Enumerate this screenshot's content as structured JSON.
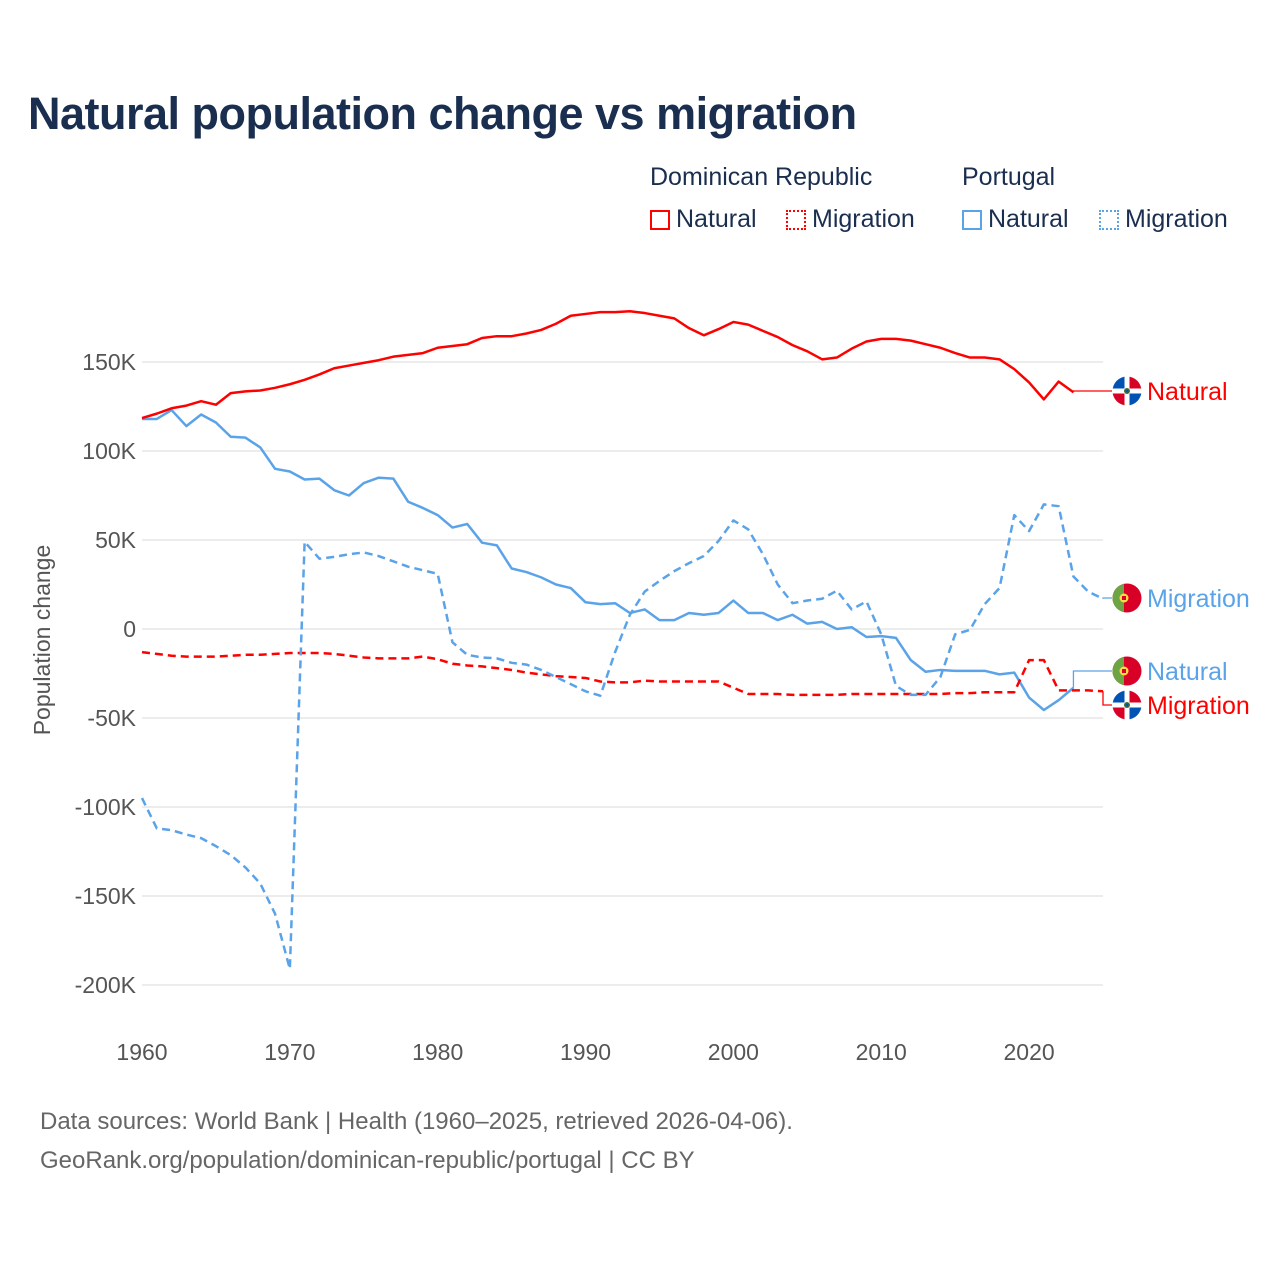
{
  "chart_data": {
    "type": "line",
    "title": "Natural population change vs migration",
    "xlabel": "",
    "ylabel": "Population change",
    "xlim": [
      1960,
      2025
    ],
    "ylim": [
      -200000,
      180000
    ],
    "grid": true,
    "legend_position": "top-right",
    "x_ticks": [
      1960,
      1970,
      1980,
      1990,
      2000,
      2010,
      2020
    ],
    "x_tick_labels": [
      "1960",
      "1970",
      "1980",
      "1990",
      "2000",
      "2010",
      "2020"
    ],
    "y_ticks": [
      150000,
      100000,
      50000,
      0,
      -50000,
      -100000,
      -150000,
      -200000
    ],
    "y_tick_labels": [
      "150K",
      "100K",
      "50K",
      "0",
      "-50K",
      "-100K",
      "-150K",
      "-200K"
    ],
    "x_start": 1960,
    "series": [
      {
        "name": "Natural",
        "country": "Dominican Republic",
        "color": "#ff0000",
        "style": "solid",
        "flag": "dominican-republic-flag",
        "values": [
          118500,
          121000,
          124000,
          125500,
          128000,
          126000,
          132500,
          133500,
          134000,
          135500,
          137500,
          140000,
          143000,
          146500,
          148000,
          149500,
          151000,
          153000,
          154000,
          155000,
          158000,
          159000,
          160000,
          163500,
          164500,
          164500,
          166000,
          168000,
          171500,
          176000,
          177000,
          178000,
          178000,
          178500,
          177500,
          176000,
          174500,
          169000,
          165000,
          168500,
          172500,
          171000,
          167500,
          164000,
          159500,
          156000,
          151500,
          152500,
          157500,
          161500,
          163000,
          163000,
          162000,
          160000,
          158000,
          155000,
          152500,
          152500,
          151500,
          146000,
          138500,
          129000,
          139000,
          133000
        ]
      },
      {
        "name": "Migration",
        "country": "Dominican Republic",
        "color": "#ff0000",
        "style": "dashed",
        "flag": "dominican-republic-flag",
        "values": [
          -13000,
          -14000,
          -15000,
          -15500,
          -15500,
          -15500,
          -15000,
          -14500,
          -14500,
          -14000,
          -13500,
          -13500,
          -13500,
          -14000,
          -15000,
          -16000,
          -16500,
          -16500,
          -16500,
          -15500,
          -17000,
          -19500,
          -20500,
          -21000,
          -22000,
          -23000,
          -24500,
          -25500,
          -26500,
          -27000,
          -27500,
          -29500,
          -30000,
          -30000,
          -29000,
          -29500,
          -29500,
          -29500,
          -29500,
          -29500,
          -33000,
          -36500,
          -36500,
          -36500,
          -37000,
          -37000,
          -37000,
          -37000,
          -36500,
          -36500,
          -36500,
          -36500,
          -36500,
          -36500,
          -36500,
          -36000,
          -36000,
          -35500,
          -35500,
          -35500,
          -17500,
          -17500,
          -34500,
          -34500,
          -34500,
          -35000
        ]
      },
      {
        "name": "Natural",
        "country": "Portugal",
        "color": "#5ba3e8",
        "style": "solid",
        "flag": "portugal-flag",
        "values": [
          118000,
          118000,
          123000,
          114000,
          120500,
          116000,
          108000,
          107500,
          102000,
          90000,
          88500,
          84000,
          84500,
          78000,
          75000,
          82000,
          85000,
          84500,
          71500,
          68000,
          64000,
          57000,
          59000,
          48500,
          47000,
          34000,
          32000,
          29000,
          25000,
          23000,
          15000,
          14000,
          14500,
          9000,
          11000,
          5000,
          5000,
          9000,
          8000,
          9000,
          16000,
          9000,
          9000,
          5000,
          8000,
          3000,
          4000,
          0,
          1000,
          -4500,
          -4000,
          -5000,
          -17500,
          -24000,
          -23000,
          -23500,
          -23500,
          -23500,
          -25500,
          -24500,
          -38500,
          -45500,
          -40000,
          -33000
        ]
      },
      {
        "name": "Migration",
        "country": "Portugal",
        "color": "#5ba3e8",
        "style": "dashed",
        "flag": "portugal-flag",
        "values": [
          -95000,
          -112000,
          -113000,
          -115500,
          -117500,
          -122000,
          -127000,
          -134000,
          -143000,
          -160000,
          -191000,
          49000,
          39500,
          40500,
          42000,
          43000,
          41000,
          38000,
          35000,
          33000,
          31000,
          -7500,
          -14500,
          -16000,
          -16500,
          -19000,
          -20000,
          -23000,
          -27000,
          -31000,
          -35000,
          -37500,
          -13000,
          8000,
          21000,
          27000,
          32500,
          37000,
          41000,
          49500,
          61000,
          56000,
          42000,
          25000,
          14500,
          16000,
          17000,
          21500,
          11000,
          15500,
          -3000,
          -32000,
          -37000,
          -37000,
          -27000,
          -3000,
          -500,
          14000,
          23000,
          64000,
          55000,
          70000,
          69000,
          29500,
          21000,
          17000
        ]
      }
    ]
  },
  "legend": {
    "groups": [
      {
        "country": "Dominican Republic",
        "items": [
          "Natural",
          "Migration"
        ]
      },
      {
        "country": "Portugal",
        "items": [
          "Natural",
          "Migration"
        ]
      }
    ]
  },
  "footer": {
    "line1": "Data sources: World Bank | Health (1960–2025, retrieved 2026-04-06).",
    "line2": "GeoRank.org/population/dominican-republic/portugal | CC BY"
  }
}
